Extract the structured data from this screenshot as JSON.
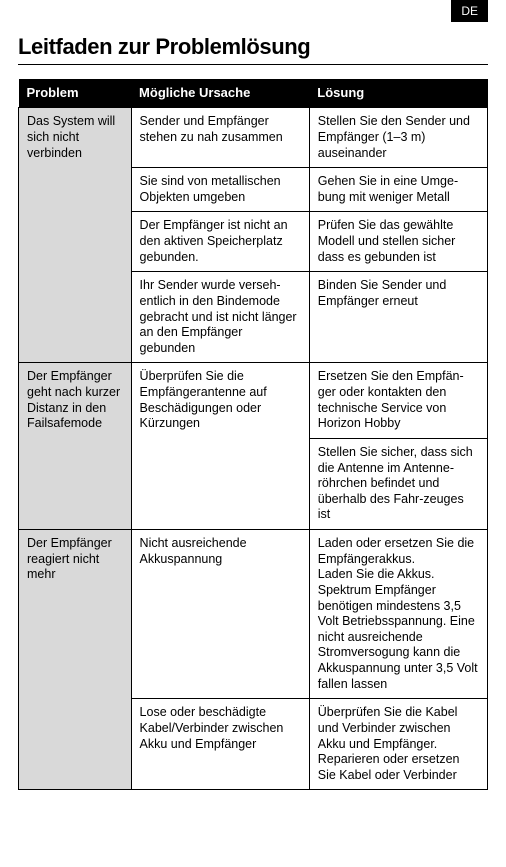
{
  "lang_badge": "DE",
  "title": "Leitfaden zur Problemlösung",
  "headers": {
    "problem": "Problem",
    "cause": "Mögliche Ursache",
    "solution": "Lösung"
  },
  "groups": [
    {
      "problem": "Das System will sich nicht verbinden",
      "rows": [
        {
          "cause": "Sender und Empfänger stehen zu nah zusammen",
          "solution": "Stellen Sie den Sender und Empfänger (1–3 m) auseinander"
        },
        {
          "cause": "Sie sind von metallischen Objekten umgeben",
          "solution": "Gehen Sie in eine Umge-bung mit weniger Metall"
        },
        {
          "cause": "Der Empfänger ist nicht an den aktiven Speicherplatz gebunden.",
          "solution": "Prüfen Sie das gewählte Modell und stellen sicher dass es gebunden ist"
        },
        {
          "cause": "Ihr Sender wurde verseh-entlich in den Bindemode gebracht und ist nicht länger an den Empfänger gebunden",
          "solution": "Binden Sie Sender und Empfänger erneut"
        }
      ]
    },
    {
      "problem": "Der Empfänger geht nach kurzer Distanz in den Failsafemode",
      "rows": [
        {
          "cause": "Überprüfen Sie die Empfängerantenne auf Beschädigungen oder Kürzungen",
          "solution": "Ersetzen Sie den Empfän-ger oder kontakten den technische Service von Horizon Hobby",
          "cause_rowspan": 2
        },
        {
          "solution": "Stellen Sie sicher, dass sich die Antenne im Antenne-röhrchen befindet und überhalb des Fahr-zeuges ist"
        }
      ]
    },
    {
      "problem": "Der Empfänger reagiert nicht mehr",
      "rows": [
        {
          "cause": "Nicht ausreichende Akkuspannung",
          "solution": "Laden oder ersetzen Sie die Empfängerakkus.\nLaden Sie die Akkus. Spektrum Empfänger benötigen mindestens 3,5 Volt Betriebsspannung. Eine nicht ausreichende Stromversogung kann die Akkuspannung unter 3,5 Volt fallen lassen"
        },
        {
          "cause": "Lose oder beschädigte Kabel/Verbinder zwischen Akku und Empfänger",
          "solution": "Überprüfen Sie die Kabel und Verbinder zwischen Akku und Empfänger. Reparieren oder ersetzen Sie Kabel oder Verbinder"
        }
      ]
    }
  ]
}
